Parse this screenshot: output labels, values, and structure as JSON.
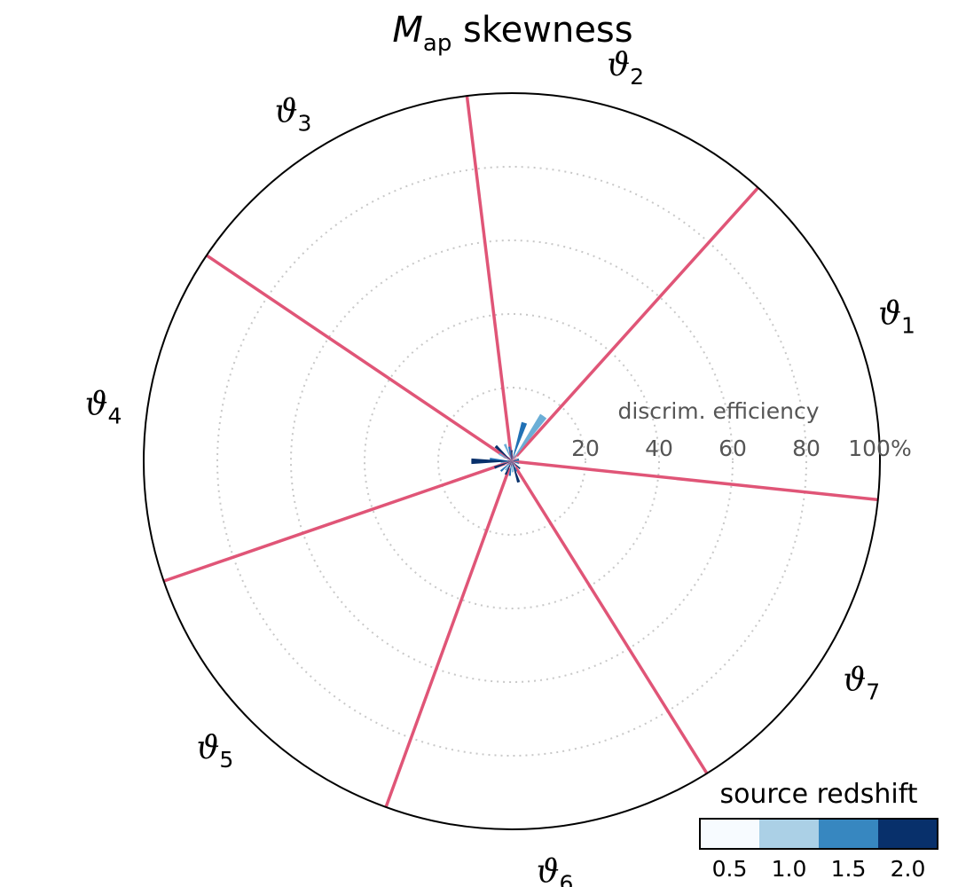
{
  "chart_data": {
    "type": "polar-bar",
    "title": {
      "main": "M",
      "sub": "ap",
      "rest": " skewness"
    },
    "radial_axis": {
      "label": "discrim. efficiency",
      "ticks": [
        "20",
        "40",
        "60",
        "80",
        "100%"
      ],
      "tick_values": [
        20,
        40,
        60,
        80,
        100
      ],
      "range": [
        0,
        100
      ],
      "grid": true
    },
    "sectors": [
      {
        "symbol": "ϑ",
        "sub": "1"
      },
      {
        "symbol": "ϑ",
        "sub": "2"
      },
      {
        "symbol": "ϑ",
        "sub": "3"
      },
      {
        "symbol": "ϑ",
        "sub": "4"
      },
      {
        "symbol": "ϑ",
        "sub": "5"
      },
      {
        "symbol": "ϑ",
        "sub": "6"
      },
      {
        "symbol": "ϑ",
        "sub": "7"
      }
    ],
    "spoke_angles_deg": [
      -6,
      48,
      97,
      146,
      199,
      250,
      302
    ],
    "sector_label_angles_deg": [
      21,
      74,
      122,
      172,
      224,
      276,
      328
    ],
    "colorbar": {
      "title": "source redshift",
      "ticks": [
        "0.5",
        "1.0",
        "1.5",
        "2.0"
      ],
      "colors": [
        "#f7fbff",
        "#abd0e6",
        "#3787c0",
        "#08306b"
      ]
    },
    "series": [
      {
        "redshift": "0.5",
        "color": "#f7fbff",
        "points": [
          [
            40,
            2
          ],
          [
            70,
            3
          ],
          [
            118,
            3
          ],
          [
            160,
            2
          ],
          [
            205,
            2
          ],
          [
            255,
            2
          ],
          [
            300,
            2
          ],
          [
            330,
            2
          ]
        ]
      },
      {
        "redshift": "1.0",
        "color": "#6baed6",
        "points": [
          [
            55,
            15
          ],
          [
            112,
            5
          ],
          [
            150,
            4
          ],
          [
            185,
            3
          ],
          [
            235,
            3
          ],
          [
            275,
            3
          ],
          [
            340,
            2
          ],
          [
            5,
            2
          ]
        ]
      },
      {
        "redshift": "1.5",
        "color": "#2171b5",
        "points": [
          [
            72,
            11
          ],
          [
            100,
            4
          ],
          [
            175,
            6
          ],
          [
            222,
            4
          ],
          [
            262,
            4
          ],
          [
            295,
            3
          ],
          [
            20,
            2
          ],
          [
            345,
            2
          ]
        ]
      },
      {
        "redshift": "2.0",
        "color": "#08306b",
        "points": [
          [
            90,
            3
          ],
          [
            137,
            6
          ],
          [
            180,
            11
          ],
          [
            200,
            5
          ],
          [
            245,
            4
          ],
          [
            288,
            6
          ],
          [
            318,
            3
          ],
          [
            10,
            2
          ]
        ]
      }
    ]
  }
}
